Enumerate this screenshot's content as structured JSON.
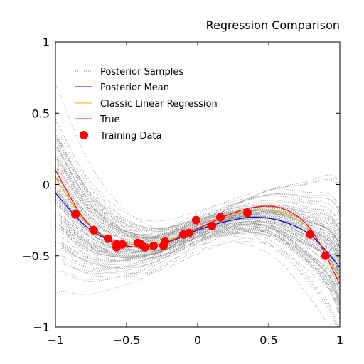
{
  "chart_data": {
    "type": "line",
    "title": "Regression Comparison",
    "xlabel": "",
    "ylabel": "",
    "xlim": [
      -1,
      1
    ],
    "ylim": [
      -1,
      1
    ],
    "xticks": [
      -1,
      -0.5,
      0,
      0.5,
      1
    ],
    "yticks": [
      -1,
      -0.5,
      0,
      0.5,
      1
    ],
    "xtick_labels": [
      "−1",
      "−0.5",
      "0",
      "0.5",
      "1"
    ],
    "ytick_labels": [
      "−1",
      "−0.5",
      "0",
      "0.5",
      "1"
    ],
    "grid": false,
    "legend_position": "top-left",
    "legend": [
      {
        "label": "Posterior Samples",
        "style": "dotted-line",
        "color": "#808080"
      },
      {
        "label": "Posterior Mean",
        "style": "line",
        "color": "#0000ff"
      },
      {
        "label": "Classic Linear Regression",
        "style": "line",
        "color": "#e6a817"
      },
      {
        "label": "True",
        "style": "line",
        "color": "#ff0000"
      },
      {
        "label": "Training Data",
        "style": "marker",
        "color": "#ff0000"
      }
    ],
    "colors": {
      "samples": "#808080",
      "posterior_mean": "#0000ff",
      "classic": "#e6a817",
      "true": "#ff0000",
      "training": "#ff0000"
    },
    "series": [
      {
        "name": "Posterior Mean",
        "x": [
          -1,
          -0.8,
          -0.6,
          -0.4,
          -0.2,
          0,
          0.2,
          0.4,
          0.6,
          0.8,
          1
        ],
        "y": [
          -0.06,
          -0.28,
          -0.4,
          -0.44,
          -0.4,
          -0.32,
          -0.26,
          -0.23,
          -0.26,
          -0.36,
          -0.58
        ]
      },
      {
        "name": "Classic Linear Regression",
        "x": [
          -1,
          -0.8,
          -0.6,
          -0.4,
          -0.2,
          0,
          0.2,
          0.4,
          0.6,
          0.8,
          1
        ],
        "y": [
          0.05,
          -0.25,
          -0.39,
          -0.42,
          -0.39,
          -0.31,
          -0.23,
          -0.18,
          -0.2,
          -0.33,
          -0.66
        ]
      },
      {
        "name": "True",
        "x": [
          -1,
          -0.8,
          -0.6,
          -0.4,
          -0.2,
          0,
          0.2,
          0.4,
          0.6,
          0.8,
          1
        ],
        "y": [
          0.1,
          -0.24,
          -0.4,
          -0.44,
          -0.4,
          -0.31,
          -0.22,
          -0.16,
          -0.17,
          -0.32,
          -0.7
        ]
      },
      {
        "name": "Training Data",
        "type": "scatter",
        "x": [
          -0.86,
          -0.73,
          -0.63,
          -0.57,
          -0.57,
          -0.53,
          -0.42,
          -0.4,
          -0.37,
          -0.31,
          -0.24,
          -0.23,
          -0.1,
          -0.06,
          -0.01,
          0.1,
          0.16,
          0.35,
          0.79,
          0.9
        ],
        "y": [
          -0.21,
          -0.32,
          -0.38,
          -0.42,
          -0.44,
          -0.42,
          -0.41,
          -0.42,
          -0.44,
          -0.43,
          -0.43,
          -0.4,
          -0.35,
          -0.34,
          -0.25,
          -0.29,
          -0.23,
          -0.2,
          -0.35,
          -0.5
        ]
      }
    ],
    "posterior_samples": {
      "count": 100,
      "base_curve_x": [
        -1,
        -0.8,
        -0.6,
        -0.4,
        -0.2,
        0,
        0.2,
        0.4,
        0.6,
        0.8,
        1
      ],
      "base_curve_y": [
        -0.06,
        -0.28,
        -0.4,
        -0.44,
        -0.4,
        -0.32,
        -0.26,
        -0.23,
        -0.26,
        -0.36,
        -0.58
      ],
      "spread_at_x_minus1": 0.55,
      "spread_at_middle": 0.1,
      "spread_at_x_plus1": 0.4
    }
  }
}
